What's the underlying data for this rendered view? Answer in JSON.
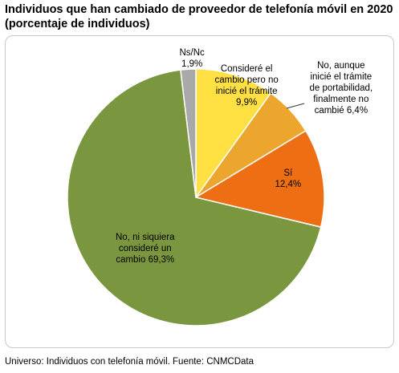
{
  "title_line1": "Individuos que han cambiado de proveedor de telefonía móvil en 2020",
  "title_line2": "(porcentaje de individuos)",
  "source": "Universo: Individuos con telefonía móvil. Fuente: CNMCData",
  "chart_data": {
    "type": "pie",
    "start_angle_deg": 0,
    "direction": "clockwise",
    "slices": [
      {
        "label_lines": [
          "Consideré el",
          "cambio pero no",
          "inicié el trámite",
          "9,9%"
        ],
        "value": 9.9,
        "color": "#ffe043"
      },
      {
        "label_lines": [
          "No, aunque",
          "inicié el trámite",
          "de portabilidad,",
          "finalmente no",
          "cambié 6,4%"
        ],
        "value": 6.4,
        "color": "#eda62d"
      },
      {
        "label_lines": [
          "Sí",
          "12,4%"
        ],
        "value": 12.4,
        "color": "#ee6f13"
      },
      {
        "label_lines": [
          "No, ni siquiera",
          "consideré un",
          "cambio  69,3%"
        ],
        "value": 69.3,
        "color": "#7a963e"
      },
      {
        "label_lines": [
          "Ns/Nc",
          "1,9%"
        ],
        "value": 1.9,
        "color": "#a9a9a9"
      }
    ]
  }
}
